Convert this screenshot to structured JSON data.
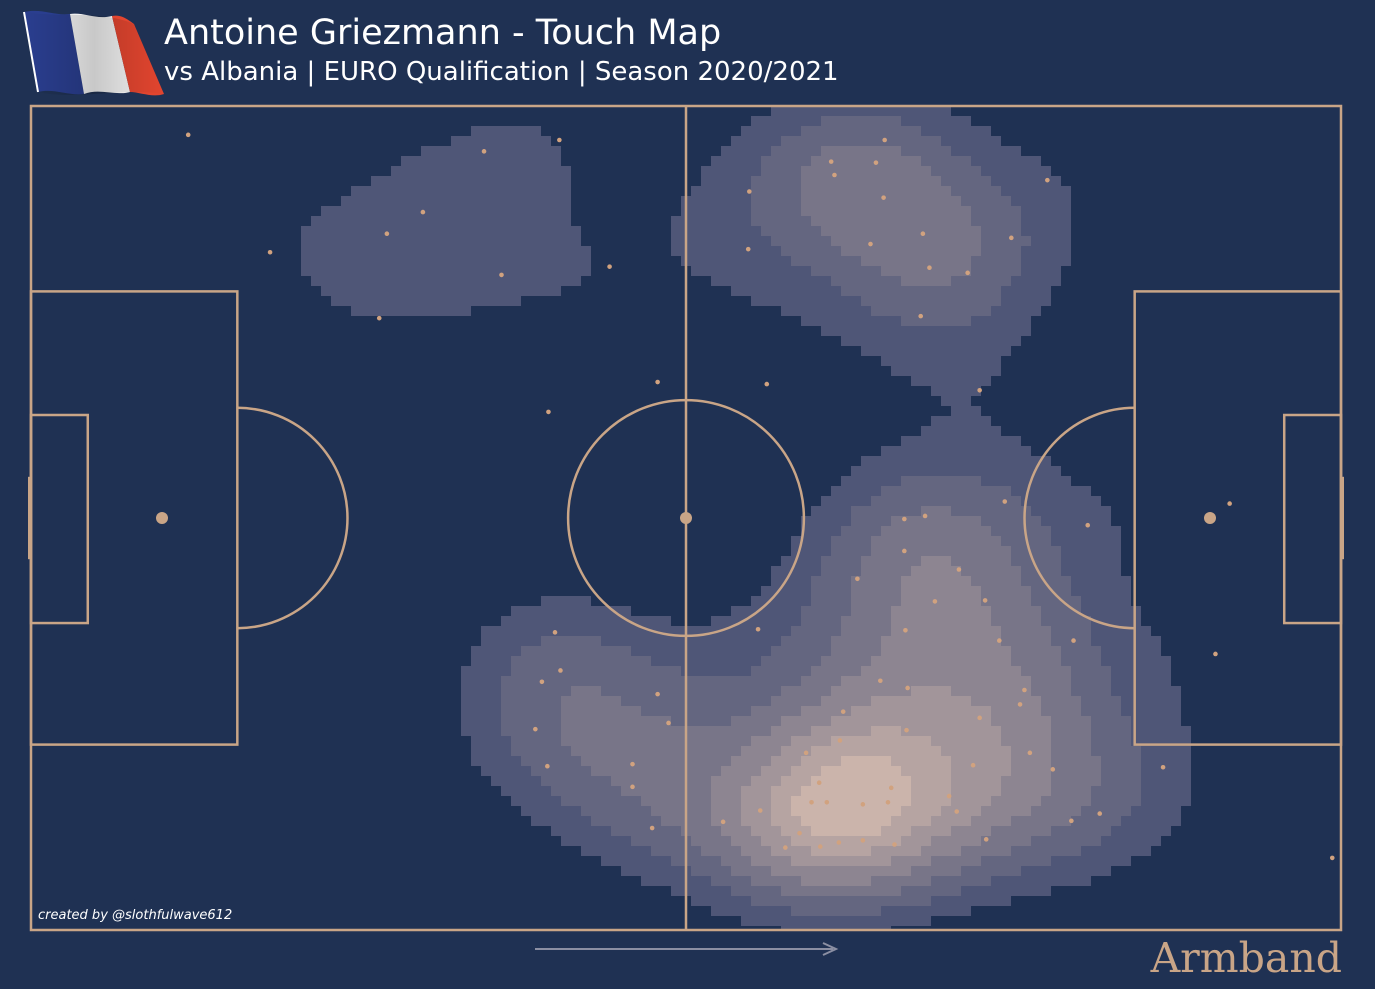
{
  "header": {
    "title": "Antoine Griezmann - Touch Map",
    "subtitle": "vs Albania | EURO Qualification | Season 2020/2021"
  },
  "footer": {
    "credit": "created by @slothfulwave612",
    "brand": "Armband"
  },
  "colors": {
    "background": "#1f3153",
    "lines": "#c9a587",
    "density_low": "#4f5677",
    "density_high": "#cbb4ab",
    "points": "#d1a27f"
  },
  "icons": {
    "flag": "france-flag-icon",
    "direction": "attack-direction-arrow-icon"
  },
  "chart_data": {
    "type": "heatmap",
    "title": "Antoine Griezmann - Touch Map",
    "subtitle": "vs Albania | EURO Qualification | Season 2020/2021",
    "pitch": {
      "length": 120,
      "width": 80,
      "attacking_direction": "left-to-right"
    },
    "touches": [
      [
        14.4,
        2.8
      ],
      [
        41.5,
        4.4
      ],
      [
        48.4,
        3.3
      ],
      [
        73.6,
        6.7
      ],
      [
        73.3,
        5.4
      ],
      [
        77.4,
        5.5
      ],
      [
        78.2,
        3.3
      ],
      [
        78.1,
        8.9
      ],
      [
        65.8,
        8.3
      ],
      [
        93.1,
        7.2
      ],
      [
        35.9,
        10.3
      ],
      [
        32.6,
        12.4
      ],
      [
        21.9,
        14.2
      ],
      [
        43.1,
        16.4
      ],
      [
        53.0,
        15.6
      ],
      [
        65.7,
        13.9
      ],
      [
        76.9,
        13.4
      ],
      [
        81.7,
        12.4
      ],
      [
        89.8,
        12.8
      ],
      [
        82.3,
        15.7
      ],
      [
        85.8,
        16.2
      ],
      [
        31.9,
        20.6
      ],
      [
        81.5,
        20.4
      ],
      [
        57.4,
        26.8
      ],
      [
        67.4,
        27.0
      ],
      [
        47.4,
        29.7
      ],
      [
        86.9,
        27.6
      ],
      [
        89.2,
        38.4
      ],
      [
        81.9,
        39.8
      ],
      [
        80.0,
        40.1
      ],
      [
        109.8,
        38.6
      ],
      [
        96.8,
        40.7
      ],
      [
        80.0,
        43.2
      ],
      [
        85.0,
        45.0
      ],
      [
        75.7,
        45.9
      ],
      [
        82.8,
        48.1
      ],
      [
        87.4,
        48.0
      ],
      [
        66.6,
        50.8
      ],
      [
        80.1,
        50.9
      ],
      [
        88.7,
        51.9
      ],
      [
        48.0,
        51.1
      ],
      [
        95.5,
        51.9
      ],
      [
        108.5,
        53.2
      ],
      [
        77.8,
        55.8
      ],
      [
        80.3,
        56.5
      ],
      [
        48.5,
        54.8
      ],
      [
        91.0,
        56.7
      ],
      [
        46.8,
        55.9
      ],
      [
        57.4,
        57.1
      ],
      [
        90.6,
        58.1
      ],
      [
        74.4,
        58.8
      ],
      [
        86.9,
        59.4
      ],
      [
        46.2,
        60.5
      ],
      [
        80.2,
        60.6
      ],
      [
        58.4,
        59.9
      ],
      [
        74.1,
        61.6
      ],
      [
        91.5,
        62.8
      ],
      [
        86.3,
        64.0
      ],
      [
        71.0,
        62.8
      ],
      [
        47.3,
        64.1
      ],
      [
        55.1,
        63.9
      ],
      [
        93.6,
        64.4
      ],
      [
        103.7,
        64.2
      ],
      [
        72.2,
        65.7
      ],
      [
        72.9,
        67.6
      ],
      [
        78.8,
        66.2
      ],
      [
        71.5,
        67.6
      ],
      [
        84.1,
        67.0
      ],
      [
        76.2,
        67.8
      ],
      [
        78.5,
        67.6
      ],
      [
        95.3,
        69.4
      ],
      [
        55.1,
        66.1
      ],
      [
        66.8,
        68.4
      ],
      [
        84.8,
        68.5
      ],
      [
        97.9,
        68.7
      ],
      [
        63.4,
        69.5
      ],
      [
        70.4,
        70.6
      ],
      [
        76.2,
        71.3
      ],
      [
        72.3,
        71.9
      ],
      [
        56.9,
        70.1
      ],
      [
        87.5,
        71.2
      ],
      [
        74.0,
        71.5
      ],
      [
        79.1,
        71.7
      ],
      [
        119.2,
        73.0
      ],
      [
        69.1,
        72.0
      ]
    ],
    "density_hotspots": [
      "attacking-left-half",
      "central-right-channel",
      "near-left-touchline"
    ]
  }
}
